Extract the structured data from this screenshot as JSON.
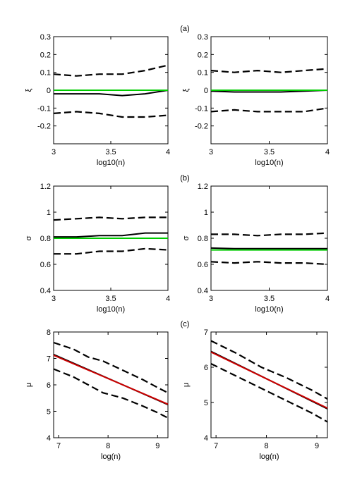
{
  "panel_labels": [
    "(a)",
    "(b)",
    "(c)"
  ],
  "chart_data": [
    {
      "type": "line",
      "panel": "(a)",
      "position": "left",
      "xlabel": "log10(n)",
      "ylabel": "ξ",
      "xlim": [
        3,
        4
      ],
      "ylim": [
        -0.3,
        0.3
      ],
      "xticks": [
        "3",
        "3.5",
        "4"
      ],
      "yticks": [
        "-0.2",
        "-0.1",
        "0",
        "0.1",
        "0.2",
        "0.3"
      ],
      "series": [
        {
          "style": "dashed",
          "color": "#000000",
          "x": [
            3,
            3.2,
            3.4,
            3.6,
            3.8,
            4
          ],
          "y": [
            0.09,
            0.08,
            0.09,
            0.09,
            0.11,
            0.14
          ]
        },
        {
          "style": "solid",
          "color": "#000000",
          "x": [
            3,
            3.2,
            3.4,
            3.6,
            3.8,
            4
          ],
          "y": [
            -0.02,
            -0.02,
            -0.02,
            -0.03,
            -0.02,
            0
          ]
        },
        {
          "style": "solid",
          "color": "#00cc00",
          "x": [
            3,
            4
          ],
          "y": [
            0,
            0
          ]
        },
        {
          "style": "dashed",
          "color": "#000000",
          "x": [
            3,
            3.2,
            3.4,
            3.6,
            3.8,
            4
          ],
          "y": [
            -0.13,
            -0.12,
            -0.13,
            -0.15,
            -0.15,
            -0.14
          ]
        }
      ]
    },
    {
      "type": "line",
      "panel": "(a)",
      "position": "right",
      "xlabel": "log10(n)",
      "ylabel": "ξ",
      "xlim": [
        3,
        4
      ],
      "ylim": [
        -0.3,
        0.3
      ],
      "xticks": [
        "3",
        "3.5",
        "4"
      ],
      "yticks": [
        "-0.2",
        "-0.1",
        "0",
        "0.1",
        "0.2",
        "0.3"
      ],
      "series": [
        {
          "style": "dashed",
          "color": "#000000",
          "x": [
            3,
            3.2,
            3.4,
            3.6,
            3.8,
            4
          ],
          "y": [
            0.11,
            0.1,
            0.11,
            0.1,
            0.11,
            0.12
          ]
        },
        {
          "style": "solid",
          "color": "#000000",
          "x": [
            3,
            3.2,
            3.4,
            3.6,
            3.8,
            4
          ],
          "y": [
            -0.005,
            -0.01,
            -0.01,
            -0.01,
            -0.005,
            0
          ]
        },
        {
          "style": "solid",
          "color": "#00cc00",
          "x": [
            3,
            4
          ],
          "y": [
            0,
            0
          ]
        },
        {
          "style": "dashed",
          "color": "#000000",
          "x": [
            3,
            3.2,
            3.4,
            3.6,
            3.8,
            4
          ],
          "y": [
            -0.12,
            -0.11,
            -0.12,
            -0.12,
            -0.12,
            -0.1
          ]
        }
      ]
    },
    {
      "type": "line",
      "panel": "(b)",
      "position": "left",
      "xlabel": "log10(n)",
      "ylabel": "σ",
      "xlim": [
        3,
        4
      ],
      "ylim": [
        0.4,
        1.2
      ],
      "xticks": [
        "3",
        "3.5",
        "4"
      ],
      "yticks": [
        "0.4",
        "0.6",
        "0.8",
        "1",
        "1.2"
      ],
      "series": [
        {
          "style": "dashed",
          "color": "#000000",
          "x": [
            3,
            3.2,
            3.4,
            3.6,
            3.8,
            4
          ],
          "y": [
            0.94,
            0.95,
            0.96,
            0.95,
            0.96,
            0.96
          ]
        },
        {
          "style": "solid",
          "color": "#000000",
          "x": [
            3,
            3.2,
            3.4,
            3.6,
            3.8,
            4
          ],
          "y": [
            0.81,
            0.81,
            0.82,
            0.82,
            0.84,
            0.84
          ]
        },
        {
          "style": "solid",
          "color": "#00cc00",
          "x": [
            3,
            4
          ],
          "y": [
            0.8,
            0.8
          ]
        },
        {
          "style": "dashed",
          "color": "#000000",
          "x": [
            3,
            3.2,
            3.4,
            3.6,
            3.8,
            4
          ],
          "y": [
            0.68,
            0.68,
            0.7,
            0.7,
            0.72,
            0.71
          ]
        }
      ]
    },
    {
      "type": "line",
      "panel": "(b)",
      "position": "right",
      "xlabel": "log10(n)",
      "ylabel": "σ",
      "xlim": [
        3,
        4
      ],
      "ylim": [
        0.4,
        1.2
      ],
      "xticks": [
        "3",
        "3.5",
        "4"
      ],
      "yticks": [
        "0.4",
        "0.6",
        "0.8",
        "1",
        "1.2"
      ],
      "series": [
        {
          "style": "dashed",
          "color": "#000000",
          "x": [
            3,
            3.2,
            3.4,
            3.6,
            3.8,
            4
          ],
          "y": [
            0.83,
            0.83,
            0.82,
            0.83,
            0.83,
            0.84
          ]
        },
        {
          "style": "solid",
          "color": "#000000",
          "x": [
            3,
            3.2,
            3.4,
            3.6,
            3.8,
            4
          ],
          "y": [
            0.725,
            0.72,
            0.72,
            0.72,
            0.72,
            0.72
          ]
        },
        {
          "style": "solid",
          "color": "#00cc00",
          "x": [
            3,
            4
          ],
          "y": [
            0.71,
            0.71
          ]
        },
        {
          "style": "dashed",
          "color": "#000000",
          "x": [
            3,
            3.2,
            3.4,
            3.6,
            3.8,
            4
          ],
          "y": [
            0.62,
            0.61,
            0.62,
            0.61,
            0.61,
            0.6
          ]
        }
      ]
    },
    {
      "type": "line",
      "panel": "(c)",
      "position": "left",
      "xlabel": "log(n)",
      "ylabel": "μ",
      "xlim": [
        6.9,
        9.21
      ],
      "ylim": [
        4,
        8
      ],
      "xticks": [
        "7",
        "8",
        "9"
      ],
      "xtick_values": [
        7,
        8,
        9
      ],
      "yticks": [
        "4",
        "5",
        "6",
        "7",
        "8"
      ],
      "series": [
        {
          "style": "dashed",
          "color": "#000000",
          "x": [
            6.9,
            7.3,
            7.6,
            7.9,
            8.3,
            8.7,
            9.0,
            9.21
          ],
          "y": [
            7.6,
            7.35,
            7.05,
            6.9,
            6.55,
            6.2,
            5.9,
            5.7
          ]
        },
        {
          "style": "solid",
          "color": "#000000",
          "x": [
            6.9,
            9.21
          ],
          "y": [
            7.15,
            5.25
          ]
        },
        {
          "style": "solid",
          "color": "#cc0000",
          "x": [
            6.9,
            9.21
          ],
          "y": [
            7.12,
            5.27
          ]
        },
        {
          "style": "dashed",
          "color": "#000000",
          "x": [
            6.9,
            7.3,
            7.6,
            7.9,
            8.3,
            8.7,
            9.0,
            9.21
          ],
          "y": [
            6.6,
            6.3,
            6.0,
            5.7,
            5.5,
            5.2,
            4.95,
            4.75
          ]
        }
      ]
    },
    {
      "type": "line",
      "panel": "(c)",
      "position": "right",
      "xlabel": "log(n)",
      "ylabel": "μ",
      "xlim": [
        6.9,
        9.21
      ],
      "ylim": [
        4,
        7
      ],
      "xticks": [
        "7",
        "8",
        "9"
      ],
      "xtick_values": [
        7,
        8,
        9
      ],
      "yticks": [
        "4",
        "5",
        "6",
        "7"
      ],
      "series": [
        {
          "style": "dashed",
          "color": "#000000",
          "x": [
            6.9,
            7.4,
            7.9,
            8.4,
            8.9,
            9.21
          ],
          "y": [
            6.75,
            6.4,
            6.0,
            5.7,
            5.35,
            5.1
          ]
        },
        {
          "style": "solid",
          "color": "#000000",
          "x": [
            6.9,
            9.21
          ],
          "y": [
            6.45,
            4.82
          ]
        },
        {
          "style": "solid",
          "color": "#cc0000",
          "x": [
            6.9,
            9.21
          ],
          "y": [
            6.43,
            4.84
          ]
        },
        {
          "style": "dashed",
          "color": "#000000",
          "x": [
            6.9,
            7.4,
            7.9,
            8.4,
            8.9,
            9.21
          ],
          "y": [
            6.1,
            5.75,
            5.4,
            5.05,
            4.7,
            4.45
          ]
        }
      ]
    }
  ]
}
